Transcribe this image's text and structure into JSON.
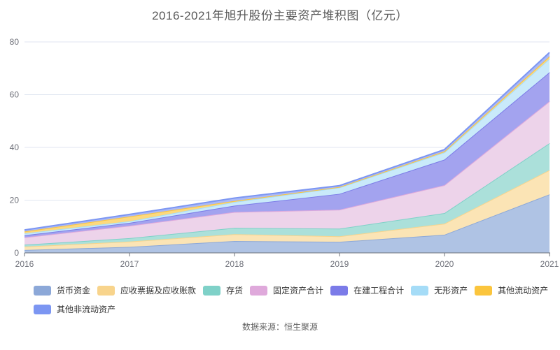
{
  "title": "2016-2021年旭升股份主要资产堆积图（亿元）",
  "source": "数据来源：恒生聚源",
  "chart_data": {
    "type": "area",
    "stacked": true,
    "title": "2016-2021年旭升股份主要资产堆积图（亿元）",
    "categories": [
      "2016",
      "2017",
      "2018",
      "2019",
      "2020",
      "2021"
    ],
    "series": [
      {
        "name": "货币资金",
        "color": "#8CA8D8",
        "fill": "#AFC3E4",
        "values": [
          1.1,
          2.3,
          4.5,
          4.2,
          6.9,
          22.2
        ]
      },
      {
        "name": "应收票据及应收账款",
        "color": "#F8D48C",
        "fill": "#FBE4B5",
        "values": [
          1.3,
          2.0,
          2.6,
          2.1,
          4.2,
          9.2
        ]
      },
      {
        "name": "存货",
        "color": "#7FD1C8",
        "fill": "#ABE0DA",
        "values": [
          0.7,
          1.3,
          2.4,
          2.9,
          4.0,
          10.2
        ]
      },
      {
        "name": "固定资产合计",
        "color": "#DFA9DB",
        "fill": "#EDD3EA",
        "values": [
          2.8,
          4.7,
          6.0,
          7.2,
          10.6,
          15.9
        ]
      },
      {
        "name": "在建工程合计",
        "color": "#7B7BE8",
        "fill": "#A3A3EF",
        "values": [
          0.8,
          1.1,
          2.4,
          6.0,
          9.7,
          11.0
        ]
      },
      {
        "name": "无形资产",
        "color": "#A5DCF7",
        "fill": "#C9EAFA",
        "values": [
          0.7,
          0.6,
          1.4,
          2.4,
          2.7,
          5.1
        ]
      },
      {
        "name": "其他流动资产",
        "color": "#FBC53D",
        "fill": "#FCD97E",
        "values": [
          0.7,
          1.8,
          0.4,
          0.2,
          0.4,
          0.9
        ]
      },
      {
        "name": "其他非流动资产",
        "color": "#7C96F2",
        "fill": "#AAB9F7",
        "values": [
          0.6,
          0.8,
          1.1,
          0.5,
          0.7,
          1.5
        ]
      }
    ],
    "xlabel": "",
    "ylabel": "",
    "ylim": [
      0,
      80
    ],
    "yticks": [
      0,
      20,
      40,
      60,
      80
    ],
    "grid": true,
    "legend_position": "bottom",
    "axis_label_color": "#6E7079",
    "gridline_color": "#E0E6F1",
    "axis_line_color": "#6E7079"
  }
}
